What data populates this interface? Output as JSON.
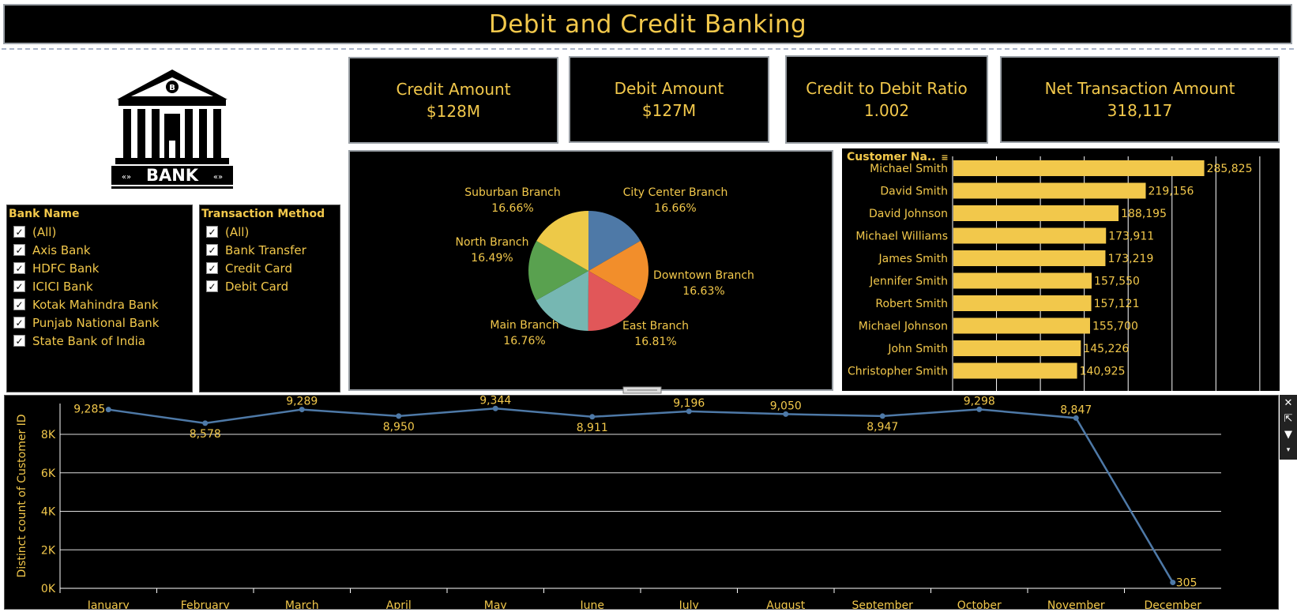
{
  "title": "Debit and Credit Banking",
  "colors": {
    "gold": "#f2c84b",
    "panel": "#000000",
    "line": "#4e79a7"
  },
  "kpis": [
    {
      "label": "Credit Amount",
      "value": "$128M"
    },
    {
      "label": "Debit Amount",
      "value": "$127M"
    },
    {
      "label": "Credit to Debit Ratio",
      "value": "1.002"
    },
    {
      "label": "Net Transaction Amount",
      "value": "318,117"
    }
  ],
  "logo": {
    "text": "BANK",
    "icon": "bank-building-icon"
  },
  "filters": {
    "bank_name": {
      "title": "Bank Name",
      "items": [
        "(All)",
        "Axis Bank",
        "HDFC Bank",
        "ICICI Bank",
        "Kotak Mahindra Bank",
        "Punjab National Bank",
        "State Bank of India"
      ]
    },
    "transaction_method": {
      "title": "Transaction Method",
      "items": [
        "(All)",
        "Bank Transfer",
        "Credit Card",
        "Debit Card"
      ]
    }
  },
  "chart_data": [
    {
      "type": "pie",
      "slices": [
        {
          "label": "City Center Branch",
          "pct": "16.66%",
          "value": 16.66,
          "color": "#4e79a7"
        },
        {
          "label": "Downtown Branch",
          "pct": "16.63%",
          "value": 16.63,
          "color": "#f28e2b"
        },
        {
          "label": "East Branch",
          "pct": "16.81%",
          "value": 16.81,
          "color": "#e15759"
        },
        {
          "label": "Main Branch",
          "pct": "16.76%",
          "value": 16.76,
          "color": "#76b7b2"
        },
        {
          "label": "North Branch",
          "pct": "16.49%",
          "value": 16.49,
          "color": "#59a14f"
        },
        {
          "label": "Suburban Branch",
          "pct": "16.66%",
          "value": 16.66,
          "color": "#edc948"
        }
      ]
    },
    {
      "type": "bar",
      "header": "Customer Na..",
      "categories": [
        "Michael Smith",
        "David Smith",
        "David Johnson",
        "Michael Williams",
        "James Smith",
        "Jennifer Smith",
        "Robert Smith",
        "Michael Johnson",
        "John Smith",
        "Christopher Smith"
      ],
      "values": [
        285825,
        219156,
        188195,
        173911,
        173219,
        157550,
        157121,
        155700,
        145226,
        140925
      ],
      "labels": [
        "285,825",
        "219,156",
        "188,195",
        "173,911",
        "173,219",
        "157,550",
        "157,121",
        "155,700",
        "145,226",
        "140,925"
      ],
      "xlim": [
        0,
        360000
      ]
    },
    {
      "type": "line",
      "ylabel": "Distinct count of Customer ID",
      "categories": [
        "January",
        "February",
        "March",
        "April",
        "May",
        "June",
        "July",
        "August",
        "September",
        "October",
        "November",
        "December"
      ],
      "values": [
        9285,
        8578,
        9289,
        8950,
        9344,
        8911,
        9196,
        9050,
        8947,
        9298,
        8847,
        305
      ],
      "labels": [
        "9,285",
        "8,578",
        "9,289",
        "8,950",
        "9,344",
        "8,911",
        "9,196",
        "9,050",
        "8,947",
        "9,298",
        "8,847",
        "305"
      ],
      "yticks": [
        "0K",
        "2K",
        "4K",
        "6K",
        "8K"
      ],
      "ylim": [
        0,
        9600
      ]
    }
  ]
}
